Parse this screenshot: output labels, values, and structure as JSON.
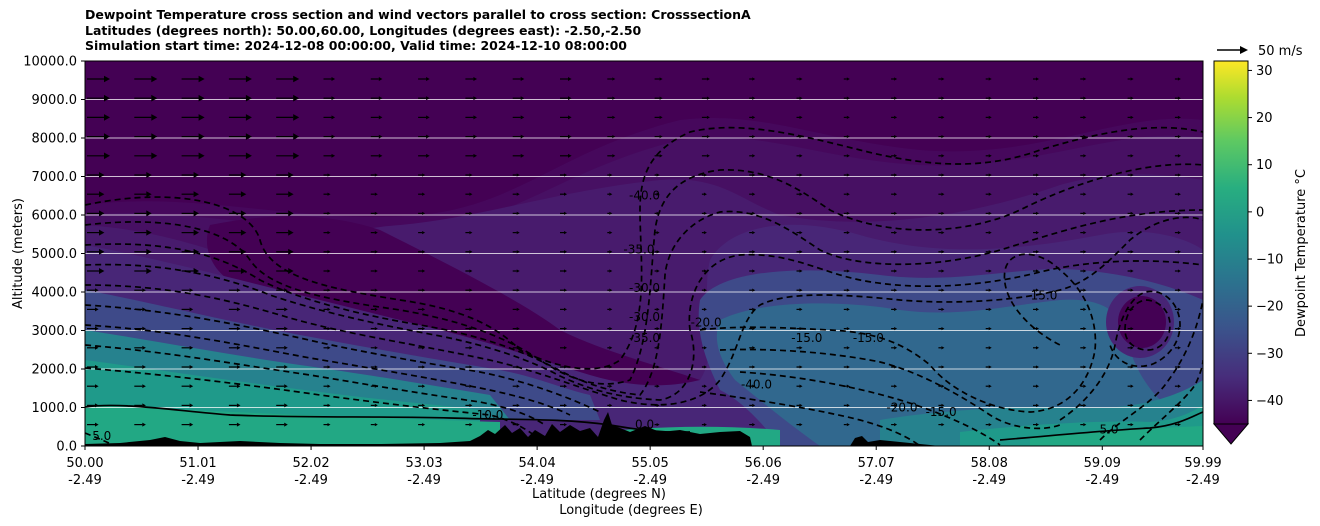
{
  "title_lines": [
    "Dewpoint Temperature cross section and wind vectors parallel to cross section: CrosssectionA",
    "Latitudes (degrees north): 50.00,60.00, Longitudes (degrees east): -2.50,-2.50",
    "Simulation start time: 2024-12-08 00:00:00, Valid time: 2024-12-10 08:00:00"
  ],
  "chart_data": {
    "type": "heatmap",
    "ylabel": "Altitude (meters)",
    "xlabel_line1": "Latitude (degrees N)",
    "xlabel_line2": "Longitude (degrees E)",
    "ylim": [
      0,
      10000
    ],
    "y_ticks": [
      "0.0",
      "1000.0",
      "2000.0",
      "3000.0",
      "4000.0",
      "5000.0",
      "6000.0",
      "7000.0",
      "8000.0",
      "9000.0",
      "10000.0"
    ],
    "x_ticks_lat": [
      "50.00",
      "51.01",
      "52.02",
      "53.03",
      "54.04",
      "55.05",
      "56.06",
      "57.07",
      "58.08",
      "59.09",
      "59.99"
    ],
    "x_ticks_lon": [
      "-2.49",
      "-2.49",
      "-2.49",
      "-2.49",
      "-2.49",
      "-2.49",
      "-2.49",
      "-2.49",
      "-2.49",
      "-2.49",
      "-2.49"
    ],
    "grid": "horizontal",
    "colorbar": {
      "label": "Dewpoint Temperature °C",
      "range": [
        -45,
        32
      ],
      "ticks": [
        "−40",
        "−30",
        "−20",
        "−10",
        "0",
        "10",
        "20",
        "30"
      ],
      "extend": "min",
      "colormap": "viridis"
    },
    "quiver_key": "50 m/s",
    "contour_labels": [
      {
        "text": "-40.0",
        "lat": 55.0,
        "alt": 6400
      },
      {
        "text": "-35.0",
        "lat": 54.95,
        "alt": 5000
      },
      {
        "text": "-30.0",
        "lat": 55.0,
        "alt": 4000
      },
      {
        "text": "-30.0",
        "lat": 55.0,
        "alt": 3250
      },
      {
        "text": "-35.0",
        "lat": 55.0,
        "alt": 2700
      },
      {
        "text": "-40.0",
        "lat": 56.0,
        "alt": 1500
      },
      {
        "text": "-20.0",
        "lat": 55.55,
        "alt": 3100
      },
      {
        "text": "-15.0",
        "lat": 56.45,
        "alt": 2700
      },
      {
        "text": "-15.0",
        "lat": 57.0,
        "alt": 2700
      },
      {
        "text": "-15.0",
        "lat": 58.55,
        "alt": 3800
      },
      {
        "text": "-20.0",
        "lat": 57.3,
        "alt": 900
      },
      {
        "text": "-15.0",
        "lat": 57.65,
        "alt": 780
      },
      {
        "text": "-10.0",
        "lat": 53.6,
        "alt": 700
      },
      {
        "text": "0.0",
        "lat": 55.0,
        "alt": 450
      },
      {
        "text": "5.0",
        "lat": 50.15,
        "alt": 150
      },
      {
        "text": "5.0",
        "lat": 59.15,
        "alt": 320
      }
    ]
  }
}
